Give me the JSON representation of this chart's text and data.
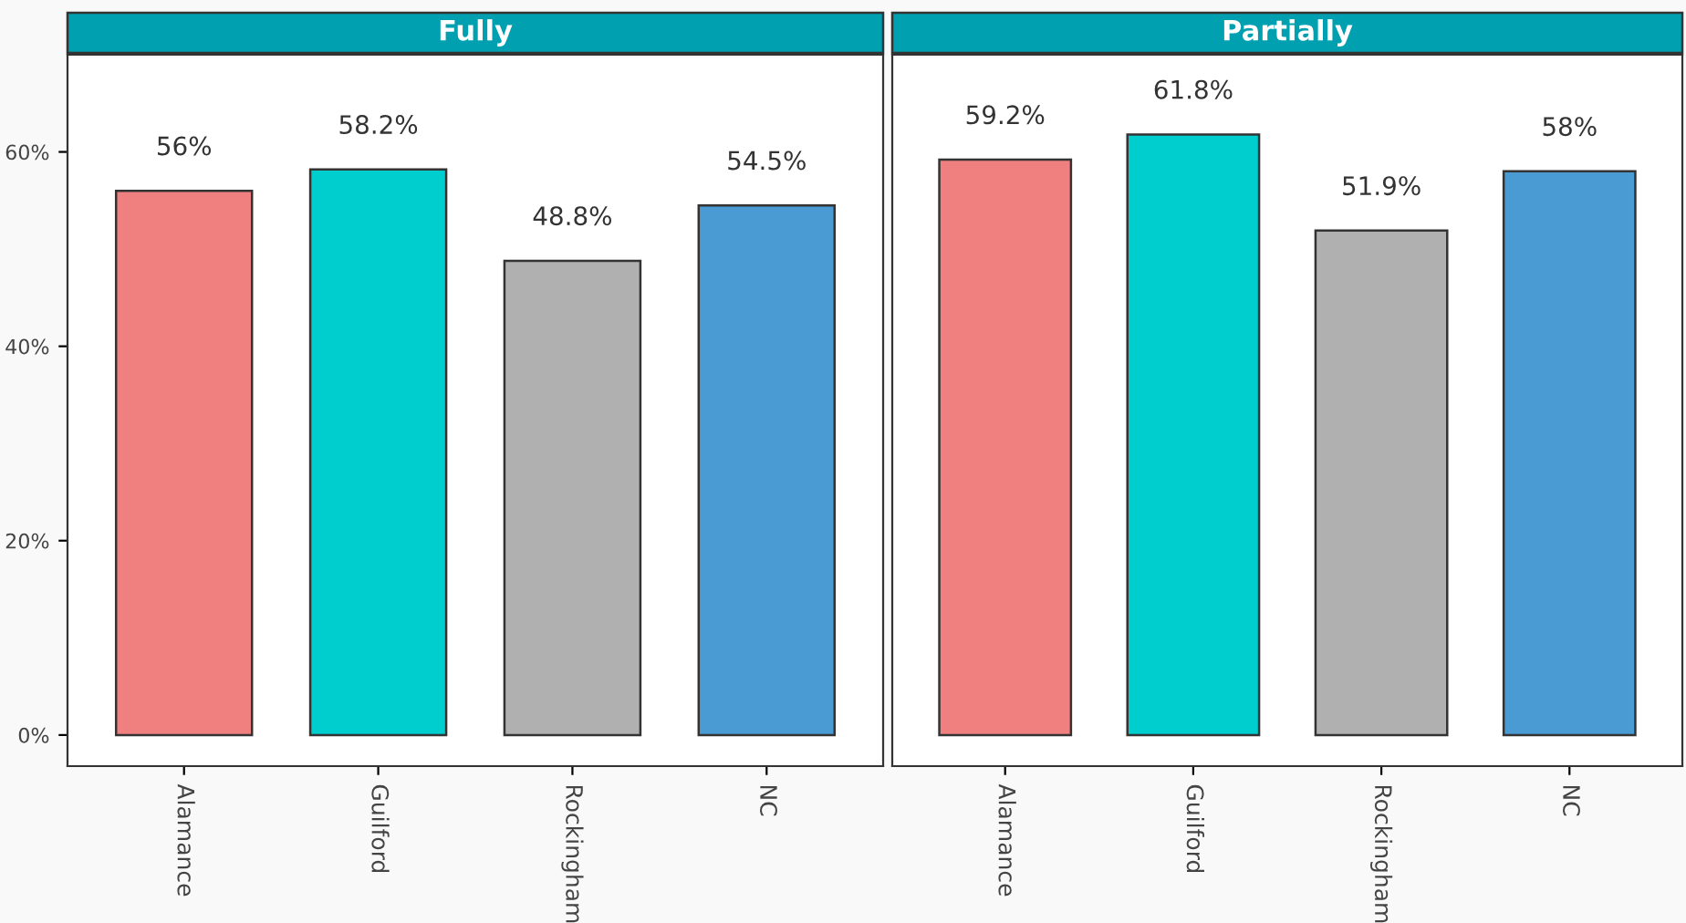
{
  "chart_data": [
    {
      "type": "bar",
      "title": "Fully",
      "categories": [
        "Alamance",
        "Guilford",
        "Rockingham",
        "NC"
      ],
      "values": [
        56,
        58.2,
        48.8,
        54.5
      ],
      "colors": [
        "#f08080",
        "#00cdcd",
        "#b0b0b0",
        "#4a9bd4"
      ],
      "value_labels": [
        "56%",
        "58.2%",
        "48.8%",
        "54.5%"
      ],
      "ylim": [
        -3.2,
        70
      ],
      "yticks": [
        {
          "value": 0,
          "label": "0%"
        },
        {
          "value": 20,
          "label": "20%"
        },
        {
          "value": 40,
          "label": "40%"
        },
        {
          "value": 60,
          "label": "60%"
        }
      ],
      "grid": false,
      "legend": false
    },
    {
      "type": "bar",
      "title": "Partially",
      "categories": [
        "Alamance",
        "Guilford",
        "Rockingham",
        "NC"
      ],
      "values": [
        59.2,
        61.8,
        51.9,
        58
      ],
      "colors": [
        "#f08080",
        "#00cdcd",
        "#b0b0b0",
        "#4a9bd4"
      ],
      "value_labels": [
        "59.2%",
        "61.8%",
        "51.9%",
        "58%"
      ],
      "ylim": [
        -3.2,
        70
      ],
      "tick_labels": "x",
      "grid": false,
      "legend": false
    }
  ]
}
